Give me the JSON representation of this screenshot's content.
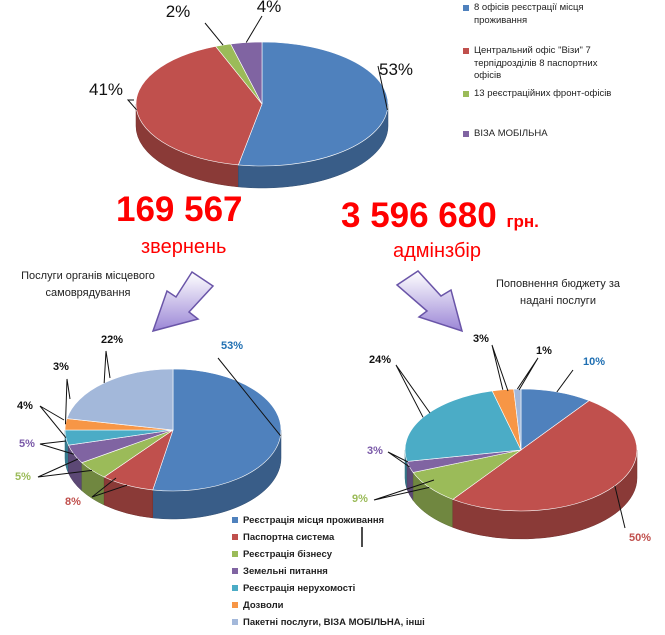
{
  "colors": {
    "blue": "#4F81BD",
    "red": "#C0504D",
    "green": "#9BBB59",
    "purple": "#8064A2",
    "teal": "#4BACC6",
    "orange": "#F79646",
    "lavender": "#A3B8DA",
    "accent_red": "#FF0000"
  },
  "summary": {
    "requests_value": "169 567",
    "requests_label": "звернень",
    "revenue_value": "3 596 680",
    "revenue_unit": "грн.",
    "revenue_label": "адмінзбір"
  },
  "captions": {
    "left": "Послуги органів місцевого самоврядування",
    "right": "Поповнення бюджету за надані послуги"
  },
  "top_legend": [
    {
      "label": "8 офісів реєстрації місця проживання",
      "color_key": "blue"
    },
    {
      "label": "Центральний офіс \"Візи\" 7 терпідрозділів 8 паспортних офісів",
      "color_key": "red"
    },
    {
      "label": "13 реєстраційних фронт-офісів",
      "color_key": "green"
    },
    {
      "label": "ВІЗА МОБІЛЬНА",
      "color_key": "purple"
    }
  ],
  "bottom_legend": [
    {
      "label": "Реєстрація місця проживання",
      "color_key": "blue"
    },
    {
      "label": "Паспортна система",
      "color_key": "red"
    },
    {
      "label": "Реєстрація бізнесу",
      "color_key": "green"
    },
    {
      "label": "Земельні питання",
      "color_key": "purple"
    },
    {
      "label": "Реєстрація нерухомості",
      "color_key": "teal"
    },
    {
      "label": "Дозволи",
      "color_key": "orange"
    },
    {
      "label": "Пакетні послуги, ВІЗА МОБІЛЬНА, інші",
      "color_key": "lavender"
    }
  ],
  "chart_data": [
    {
      "type": "pie",
      "style": "3d",
      "categories": [
        "8 офісів реєстрації місця проживання",
        "Центральний офіс \"Візи\" 7 терпідрозділів 8 паспортних офісів",
        "13 реєстраційних фронт-офісів",
        "ВІЗА МОБІЛЬНА"
      ],
      "values": [
        53,
        41,
        2,
        4
      ],
      "labels": [
        "53%",
        "41%",
        "2%",
        "4%"
      ],
      "colors": [
        "#4F81BD",
        "#C0504D",
        "#9BBB59",
        "#8064A2"
      ],
      "legend": "right"
    },
    {
      "type": "pie",
      "style": "3d",
      "caption": "Послуги органів місцевого самоврядування",
      "categories": [
        "Реєстрація місця проживання",
        "Паспортна система",
        "Реєстрація бізнесу",
        "Земельні питання",
        "Реєстрація нерухомості",
        "Дозволи",
        "Пакетні послуги, ВІЗА МОБІЛЬНА, інші"
      ],
      "values": [
        53,
        8,
        5,
        5,
        4,
        3,
        22
      ],
      "labels": [
        "53%",
        "8%",
        "5%",
        "5%",
        "4%",
        "3%",
        "22%"
      ],
      "colors": [
        "#4F81BD",
        "#C0504D",
        "#9BBB59",
        "#8064A2",
        "#4BACC6",
        "#F79646",
        "#A3B8DA"
      ],
      "legend": "bottom"
    },
    {
      "type": "pie",
      "style": "3d",
      "caption": "Поповнення бюджету за надані послуги",
      "categories": [
        "Реєстрація місця проживання",
        "Паспортна система",
        "Реєстрація бізнесу",
        "Земельні питання",
        "Реєстрація нерухомості",
        "Дозволи",
        "Пакетні послуги, ВІЗА МОБІЛЬНА, інші"
      ],
      "values": [
        10,
        50,
        9,
        3,
        24,
        3,
        1
      ],
      "labels": [
        "10%",
        "50%",
        "9%",
        "3%",
        "24%",
        "3%",
        "1%"
      ],
      "colors": [
        "#4F81BD",
        "#C0504D",
        "#9BBB59",
        "#8064A2",
        "#4BACC6",
        "#F79646",
        "#A3B8DA"
      ],
      "legend": "bottom"
    }
  ]
}
